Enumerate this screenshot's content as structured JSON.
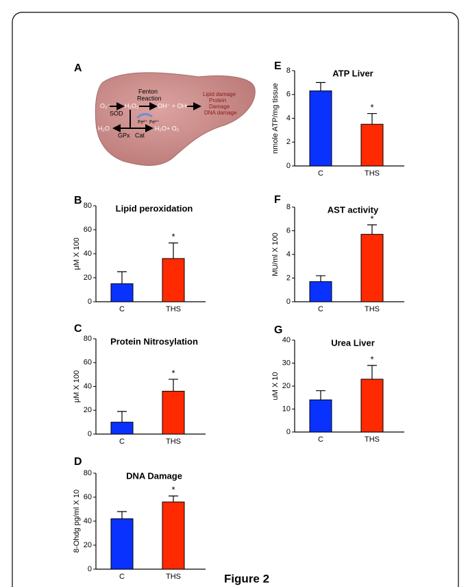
{
  "diagram": {
    "label": "A",
    "o2": "O₂⁻",
    "sod": "SOD",
    "h2o2": "H₂O₂",
    "fenton": "Fenton",
    "reaction": "Reaction",
    "oh": "OH⁻ + OH•",
    "fe2": "Fe²⁺",
    "fe3": "Fe³⁺",
    "h2o": "H₂O",
    "gpx": "GPx",
    "cat": "Cat",
    "h2o_o2": "H₂O+ O₂",
    "damage": [
      "Lipid damage",
      "Protein",
      "Damage",
      "DNA damage"
    ]
  },
  "figure_caption": "Figure 2",
  "chart_data": [
    {
      "type": "bar",
      "label": "B",
      "title": "Lipid peroxidation",
      "y_label": "μM X 100",
      "categories": [
        "C",
        "THS"
      ],
      "values": [
        15,
        36
      ],
      "errors": [
        10,
        13
      ],
      "colors": [
        "#0a32ff",
        "#ff2a00"
      ],
      "significance": [
        null,
        "*"
      ],
      "ylim": [
        0,
        80
      ],
      "yticks": [
        0,
        20,
        40,
        60,
        80
      ]
    },
    {
      "type": "bar",
      "label": "C",
      "title": "Protein Nitrosylation",
      "y_label": "μM X 100",
      "categories": [
        "C",
        "THS"
      ],
      "values": [
        10,
        36
      ],
      "errors": [
        9,
        10
      ],
      "colors": [
        "#0a32ff",
        "#ff2a00"
      ],
      "significance": [
        null,
        "*"
      ],
      "ylim": [
        0,
        80
      ],
      "yticks": [
        0,
        20,
        40,
        60,
        80
      ]
    },
    {
      "type": "bar",
      "label": "D",
      "title": "DNA Damage",
      "y_label": "8-Ohdg  pg/ml X 10",
      "categories": [
        "C",
        "THS"
      ],
      "values": [
        42,
        56
      ],
      "errors": [
        6,
        5
      ],
      "colors": [
        "#0a32ff",
        "#ff2a00"
      ],
      "significance": [
        null,
        "*"
      ],
      "ylim": [
        0,
        80
      ],
      "yticks": [
        0,
        20,
        40,
        60,
        80
      ]
    },
    {
      "type": "bar",
      "label": "E",
      "title": "ATP Liver",
      "y_label": "nmole ATP/mg tissue",
      "categories": [
        "C",
        "THS"
      ],
      "values": [
        6.3,
        3.5
      ],
      "errors": [
        0.7,
        0.9
      ],
      "colors": [
        "#0a32ff",
        "#ff2a00"
      ],
      "significance": [
        null,
        "*"
      ],
      "ylim": [
        0,
        8
      ],
      "yticks": [
        0,
        2,
        4,
        6,
        8
      ]
    },
    {
      "type": "bar",
      "label": "F",
      "title": "AST activity",
      "y_label": "MU/ml X 100",
      "categories": [
        "C",
        "THS"
      ],
      "values": [
        1.7,
        5.7
      ],
      "errors": [
        0.5,
        0.8
      ],
      "colors": [
        "#0a32ff",
        "#ff2a00"
      ],
      "significance": [
        null,
        "*"
      ],
      "ylim": [
        0,
        8
      ],
      "yticks": [
        0,
        2,
        4,
        6,
        8
      ]
    },
    {
      "type": "bar",
      "label": "G",
      "title": "Urea Liver",
      "y_label": "uM X 10",
      "categories": [
        "C",
        "THS"
      ],
      "values": [
        14,
        23
      ],
      "errors": [
        4,
        6
      ],
      "colors": [
        "#0a32ff",
        "#ff2a00"
      ],
      "significance": [
        null,
        "*"
      ],
      "ylim": [
        0,
        40
      ],
      "yticks": [
        0,
        10,
        20,
        30,
        40
      ]
    }
  ]
}
